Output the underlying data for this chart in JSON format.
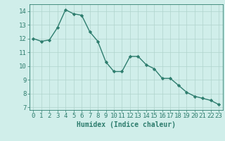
{
  "x": [
    0,
    1,
    2,
    3,
    4,
    5,
    6,
    7,
    8,
    9,
    10,
    11,
    12,
    13,
    14,
    15,
    16,
    17,
    18,
    19,
    20,
    21,
    22,
    23
  ],
  "y": [
    12.0,
    11.8,
    11.9,
    12.8,
    14.1,
    13.8,
    13.7,
    12.5,
    11.8,
    10.3,
    9.6,
    9.6,
    10.7,
    10.7,
    10.1,
    9.8,
    9.1,
    9.1,
    8.6,
    8.1,
    7.8,
    7.65,
    7.5,
    7.2
  ],
  "line_color": "#2e7d6e",
  "marker": "D",
  "marker_size": 2.2,
  "bg_color": "#d0eeea",
  "grid_color": "#b0d4cc",
  "xlabel": "Humidex (Indice chaleur)",
  "xlim": [
    -0.5,
    23.5
  ],
  "ylim": [
    6.8,
    14.5
  ],
  "yticks": [
    7,
    8,
    9,
    10,
    11,
    12,
    13,
    14
  ],
  "xticks": [
    0,
    1,
    2,
    3,
    4,
    5,
    6,
    7,
    8,
    9,
    10,
    11,
    12,
    13,
    14,
    15,
    16,
    17,
    18,
    19,
    20,
    21,
    22,
    23
  ],
  "xlabel_fontsize": 7,
  "tick_fontsize": 6.5,
  "line_width": 1.0
}
